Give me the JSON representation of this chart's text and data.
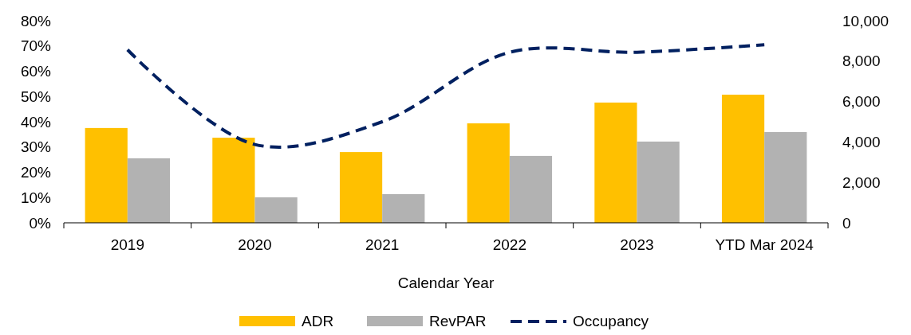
{
  "chart_data": {
    "type": "bar",
    "xlabel": "Calendar Year",
    "categories": [
      "2019",
      "2020",
      "2021",
      "2022",
      "2023",
      "YTD Mar 2024"
    ],
    "series": [
      {
        "name": "ADR",
        "color": "#ffc000",
        "axis": "y2",
        "values": [
          4690,
          4210,
          3500,
          4920,
          5950,
          6340
        ]
      },
      {
        "name": "RevPAR",
        "color": "#b2b2b2",
        "axis": "y2",
        "values": [
          3190,
          1260,
          1420,
          3310,
          4020,
          4490
        ]
      },
      {
        "name": "Occupancy",
        "type": "line",
        "color": "#002060",
        "line_style": "dashed",
        "values": [
          68.5,
          31,
          40,
          67.5,
          67.5,
          70.5
        ]
      }
    ],
    "ylim": [
      0,
      80
    ],
    "yticks": [
      {
        "value": 0,
        "label": "0%"
      },
      {
        "value": 10,
        "label": "10%"
      },
      {
        "value": 20,
        "label": "20%"
      },
      {
        "value": 30,
        "label": "30%"
      },
      {
        "value": 40,
        "label": "40%"
      },
      {
        "value": 50,
        "label": "50%"
      },
      {
        "value": 60,
        "label": "60%"
      },
      {
        "value": 70,
        "label": "70%"
      },
      {
        "value": 80,
        "label": "80%"
      }
    ],
    "y2lim": [
      0,
      10000
    ],
    "y2ticks": [
      {
        "value": 0,
        "label": "0"
      },
      {
        "value": 2000,
        "label": "2,000"
      },
      {
        "value": 4000,
        "label": "4,000"
      },
      {
        "value": 6000,
        "label": "6,000"
      },
      {
        "value": 8000,
        "label": "8,000"
      },
      {
        "value": 10000,
        "label": "10,000"
      }
    ],
    "grid": false,
    "legend": "bottom"
  }
}
